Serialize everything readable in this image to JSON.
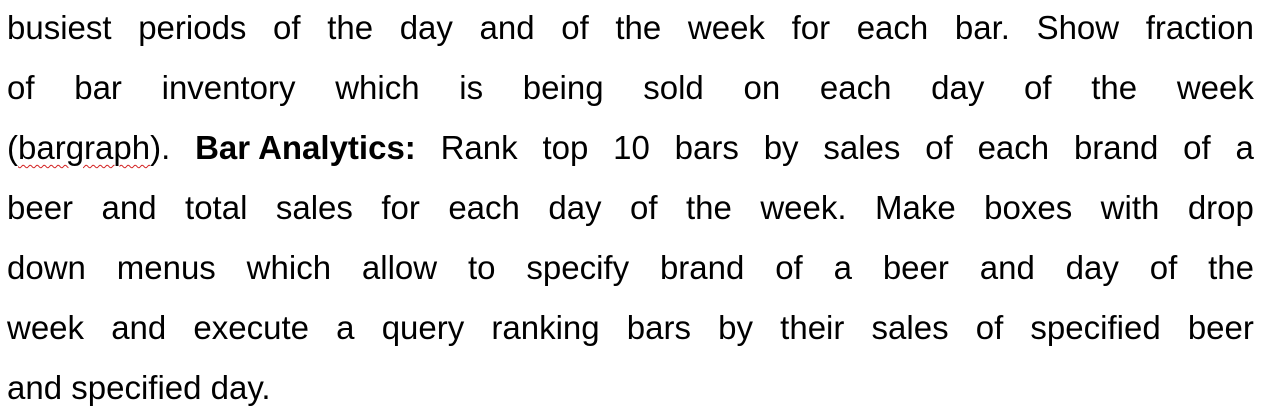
{
  "document": {
    "lines": [
      [
        "busiest",
        "periods",
        "of",
        "the",
        "day",
        "and",
        "of",
        "the",
        "week",
        "for",
        "each",
        "bar.",
        "Show",
        "fraction"
      ],
      [
        "of",
        "bar",
        "inventory",
        "which",
        "is",
        "being",
        "sold",
        "on",
        "each",
        "day",
        "of",
        "the",
        "week"
      ],
      [
        "(bargraph).",
        "Bar Analytics:",
        "Rank",
        "top",
        "10",
        "bars",
        "by",
        "sales",
        "of",
        "each",
        "brand",
        "of",
        "a"
      ],
      [
        "beer",
        "and",
        "total",
        "sales",
        "for",
        "each",
        "day",
        "of",
        "the",
        "week.",
        "Make",
        "boxes",
        "with",
        "drop"
      ],
      [
        "down",
        "menus",
        "which",
        "allow",
        "to",
        "specify",
        "brand",
        "of",
        "a",
        "beer",
        "and",
        "day",
        "of",
        "the"
      ],
      [
        "week",
        "and",
        "execute",
        "a",
        "query",
        "ranking",
        "bars",
        "by",
        "their",
        "sales",
        "of",
        "specified",
        "beer"
      ],
      [
        "and",
        "specified",
        "day."
      ]
    ],
    "bold_word": "Bar Analytics:",
    "misspelled_word": "bargraph",
    "spellcheck_underline_color": "#d21f1f"
  }
}
